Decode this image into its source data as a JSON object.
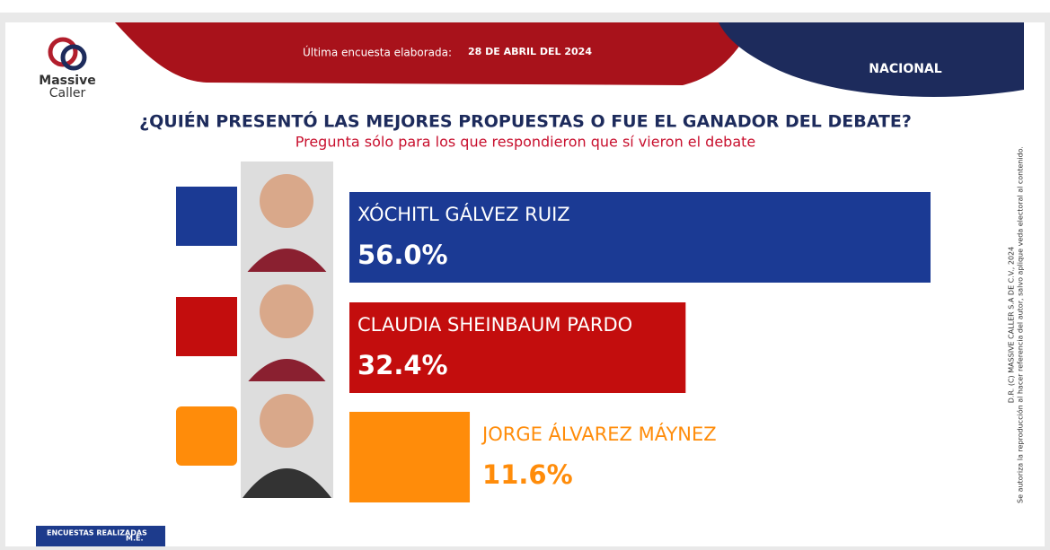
{
  "brand": {
    "line1": "Massive",
    "line2": "Caller"
  },
  "header": {
    "survey_label": "Última encuesta elaborada:",
    "survey_date": "28 DE ABRIL DEL 2024",
    "scope": "NACIONAL"
  },
  "side_note": {
    "line1": "D.R. (C) MASSIVE CALLER S.A DE C.V., 2024",
    "line2": "Se autoriza la reproducción al hacer referencia del autor, salvo aplique veda electoral al contenido."
  },
  "footer": {
    "surveys": "ENCUESTAS REALIZADAS",
    "me": "M.E."
  },
  "chart_data": {
    "type": "bar",
    "orientation": "horizontal",
    "title": "¿QUIÉN PRESENTÓ LAS MEJORES PROPUESTAS O FUE EL GANADOR DEL DEBATE?",
    "subtitle": "Pregunta sólo para los que respondieron  que sí vieron el debate",
    "categories": [
      "XÓCHITL GÁLVEZ RUIZ",
      "CLAUDIA SHEINBAUM PARDO",
      "JORGE ÁLVAREZ MÁYNEZ"
    ],
    "values": [
      56.0,
      32.4,
      11.6
    ],
    "value_labels": [
      "56.0%",
      "32.4%",
      "11.6%"
    ],
    "colors": [
      "#1b3a94",
      "#c30d0d",
      "#ff8c0a"
    ],
    "xlim": [
      0,
      56
    ]
  }
}
